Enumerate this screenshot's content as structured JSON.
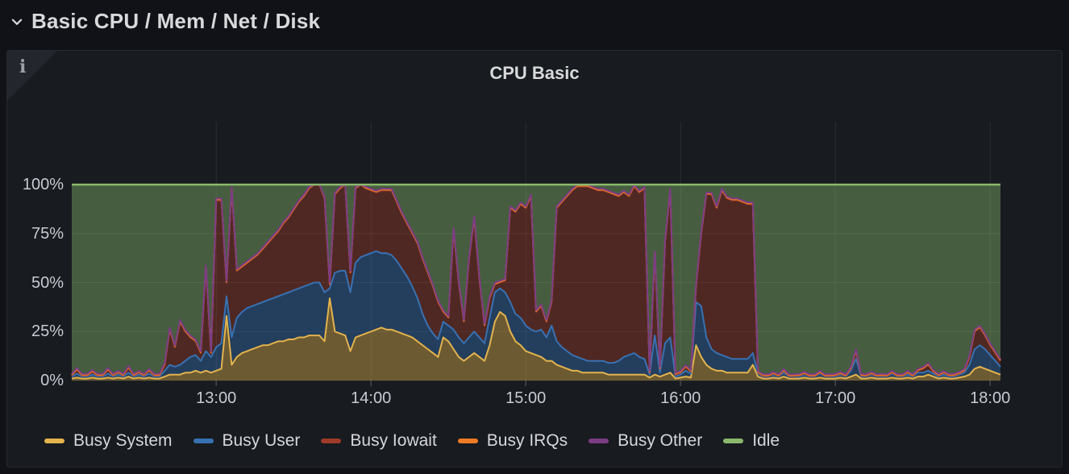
{
  "page": {
    "row_title": "Basic CPU / Mem / Net / Disk",
    "info_icon_glyph": "i"
  },
  "chart_data": {
    "type": "area",
    "title": "CPU Basic",
    "stacking": "percent",
    "ylim": [
      0,
      100
    ],
    "y_unit": "%",
    "grid": true,
    "legend_position": "bottom",
    "x_range": {
      "start": "12:04",
      "end": "18:04",
      "step_minutes": 2
    },
    "x_ticks": [
      {
        "label": "13:00",
        "index": 28
      },
      {
        "label": "14:00",
        "index": 58
      },
      {
        "label": "15:00",
        "index": 88
      },
      {
        "label": "16:00",
        "index": 118
      },
      {
        "label": "17:00",
        "index": 148
      },
      {
        "label": "18:00",
        "index": 178
      }
    ],
    "y_ticks": [
      {
        "label": "100%",
        "value": 100
      },
      {
        "label": "75%",
        "value": 75
      },
      {
        "label": "50%",
        "value": 50
      },
      {
        "label": "25%",
        "value": 25
      },
      {
        "label": "0%",
        "value": 0
      }
    ],
    "series": [
      {
        "name": "Busy System",
        "color": "#E3B34C",
        "values": [
          1,
          1.5,
          1,
          1,
          1.5,
          1,
          1,
          1.5,
          1,
          1.5,
          1,
          2,
          1,
          1.5,
          1,
          1.5,
          1,
          1,
          2,
          3,
          3,
          3,
          4,
          4,
          5,
          4,
          5,
          4,
          5,
          6,
          33,
          8,
          12,
          14,
          15,
          16,
          17,
          18,
          18,
          19,
          20,
          20,
          21,
          21,
          22,
          22,
          23,
          23,
          23,
          20,
          42,
          25,
          24,
          23,
          15,
          22,
          23,
          24,
          25,
          26,
          27,
          26,
          26,
          25,
          24,
          23,
          22,
          20,
          18,
          16,
          14,
          12,
          22,
          20,
          16,
          12,
          10,
          12,
          14,
          12,
          10,
          18,
          30,
          35,
          33,
          25,
          20,
          18,
          15,
          14,
          13,
          12,
          10,
          10,
          8,
          7,
          6,
          5,
          5,
          4,
          4,
          4,
          4,
          4,
          3,
          3,
          3,
          3,
          3,
          3,
          3,
          3,
          1.5,
          3,
          2,
          3,
          4,
          1,
          1.5,
          2,
          1.5,
          18,
          12,
          8,
          6,
          5,
          5,
          4,
          4,
          4,
          4,
          4,
          8,
          2,
          1,
          1,
          1.5,
          1,
          2,
          1,
          1,
          1,
          1.5,
          1,
          1,
          1.5,
          1,
          1,
          1,
          1.5,
          1,
          2,
          3,
          1,
          1,
          1.5,
          1,
          1,
          1,
          1.5,
          1,
          1,
          1.5,
          1,
          2,
          2,
          3,
          2,
          1,
          1.5,
          1,
          1,
          1.5,
          2,
          3,
          6,
          7,
          6,
          5,
          4,
          3
        ]
      },
      {
        "name": "Busy User",
        "color": "#3871B2",
        "values": [
          1,
          2,
          1,
          1,
          1.5,
          1,
          1,
          2,
          1,
          1.5,
          1,
          2,
          1,
          1.5,
          1,
          2,
          1,
          1,
          3,
          5,
          4,
          5,
          6,
          8,
          8,
          6,
          10,
          8,
          12,
          13,
          10,
          14,
          20,
          21,
          22,
          22,
          22,
          22,
          23,
          23,
          23,
          24,
          24,
          25,
          25,
          26,
          26,
          27,
          27,
          25,
          5,
          30,
          32,
          33,
          30,
          38,
          40,
          40,
          40,
          40,
          38,
          39,
          38,
          36,
          33,
          30,
          26,
          22,
          16,
          12,
          10,
          9,
          8,
          8,
          10,
          10,
          9,
          10,
          11,
          10,
          9,
          14,
          15,
          12,
          12,
          15,
          14,
          14,
          13,
          12,
          12,
          14,
          12,
          18,
          12,
          10,
          9,
          8,
          7,
          7,
          6,
          6,
          6,
          6,
          6,
          6,
          7,
          9,
          10,
          11,
          9,
          8,
          1.5,
          20,
          2,
          16,
          18,
          1,
          1.5,
          3,
          2,
          22,
          26,
          14,
          10,
          9,
          8,
          8,
          7,
          7,
          7,
          7,
          6,
          1.5,
          1,
          1,
          1.5,
          1,
          2,
          1,
          1,
          1,
          1.5,
          1,
          1,
          2,
          1,
          1,
          1,
          1.5,
          1,
          3,
          8,
          1,
          1,
          1.5,
          1,
          1,
          1,
          2,
          1,
          1,
          1.5,
          1,
          2,
          2,
          2,
          1.5,
          1,
          1.5,
          1,
          1,
          1.5,
          2,
          5,
          10,
          11,
          10,
          8,
          6,
          4
        ]
      },
      {
        "name": "Busy Iowait",
        "color": "#9E3B28",
        "values": [
          0.5,
          2,
          0.5,
          0.5,
          1.5,
          0.5,
          0.5,
          2,
          0.5,
          1,
          0.5,
          2.5,
          0.5,
          1,
          0.5,
          1.5,
          0.5,
          0.5,
          3,
          18,
          10,
          22,
          15,
          10,
          7,
          4,
          43,
          2,
          75,
          73,
          7,
          76,
          24,
          23,
          23,
          24,
          25,
          27,
          29,
          31,
          33,
          36,
          38,
          41,
          44,
          46,
          49,
          50,
          50,
          48,
          2,
          40,
          42,
          44,
          10,
          38,
          37,
          34,
          32,
          30,
          32,
          32,
          33,
          30,
          28,
          27,
          27,
          28,
          28,
          27,
          24,
          19,
          5,
          4,
          51,
          28,
          11,
          40,
          58,
          30,
          9,
          10,
          4,
          3,
          6,
          48,
          52,
          58,
          60,
          68,
          10,
          12,
          8,
          12,
          68,
          74,
          79,
          84,
          87,
          88,
          89,
          88,
          87,
          87,
          87,
          86,
          84,
          84,
          81,
          85,
          84,
          87,
          1,
          42,
          2,
          52,
          75,
          1,
          1,
          2,
          1,
          8,
          37,
          73,
          79,
          74,
          84,
          81,
          81,
          81,
          80,
          79,
          76,
          0.5,
          0.3,
          0.3,
          0.5,
          0.3,
          1,
          0.3,
          0.3,
          0.5,
          0.5,
          0.3,
          0.3,
          0.5,
          0.3,
          0.3,
          0.5,
          0.5,
          0.3,
          1,
          4,
          0.5,
          0.3,
          0.5,
          0.3,
          0.5,
          0.3,
          0.5,
          0.3,
          0.3,
          1,
          0.3,
          1,
          2,
          3,
          1,
          0.5,
          1,
          0.5,
          0.5,
          0.5,
          1,
          4,
          9,
          9,
          7,
          5,
          4,
          3
        ]
      },
      {
        "name": "Busy IRQs",
        "color": "#EC7B26",
        "constant_value": 0.4
      },
      {
        "name": "Busy Other",
        "color": "#7B3C85",
        "constant_value": 0.5
      },
      {
        "name": "Idle",
        "color": "#8AB96E",
        "remainder_to": 100
      }
    ]
  },
  "theme": {
    "page_bg": "#111217",
    "panel_bg": "#181B1F",
    "panel_border": "#26292F",
    "text_primary": "#D8D9DA",
    "axis_text": "#C9CAD4",
    "grid_line": "rgba(204,204,220,0.10)"
  }
}
